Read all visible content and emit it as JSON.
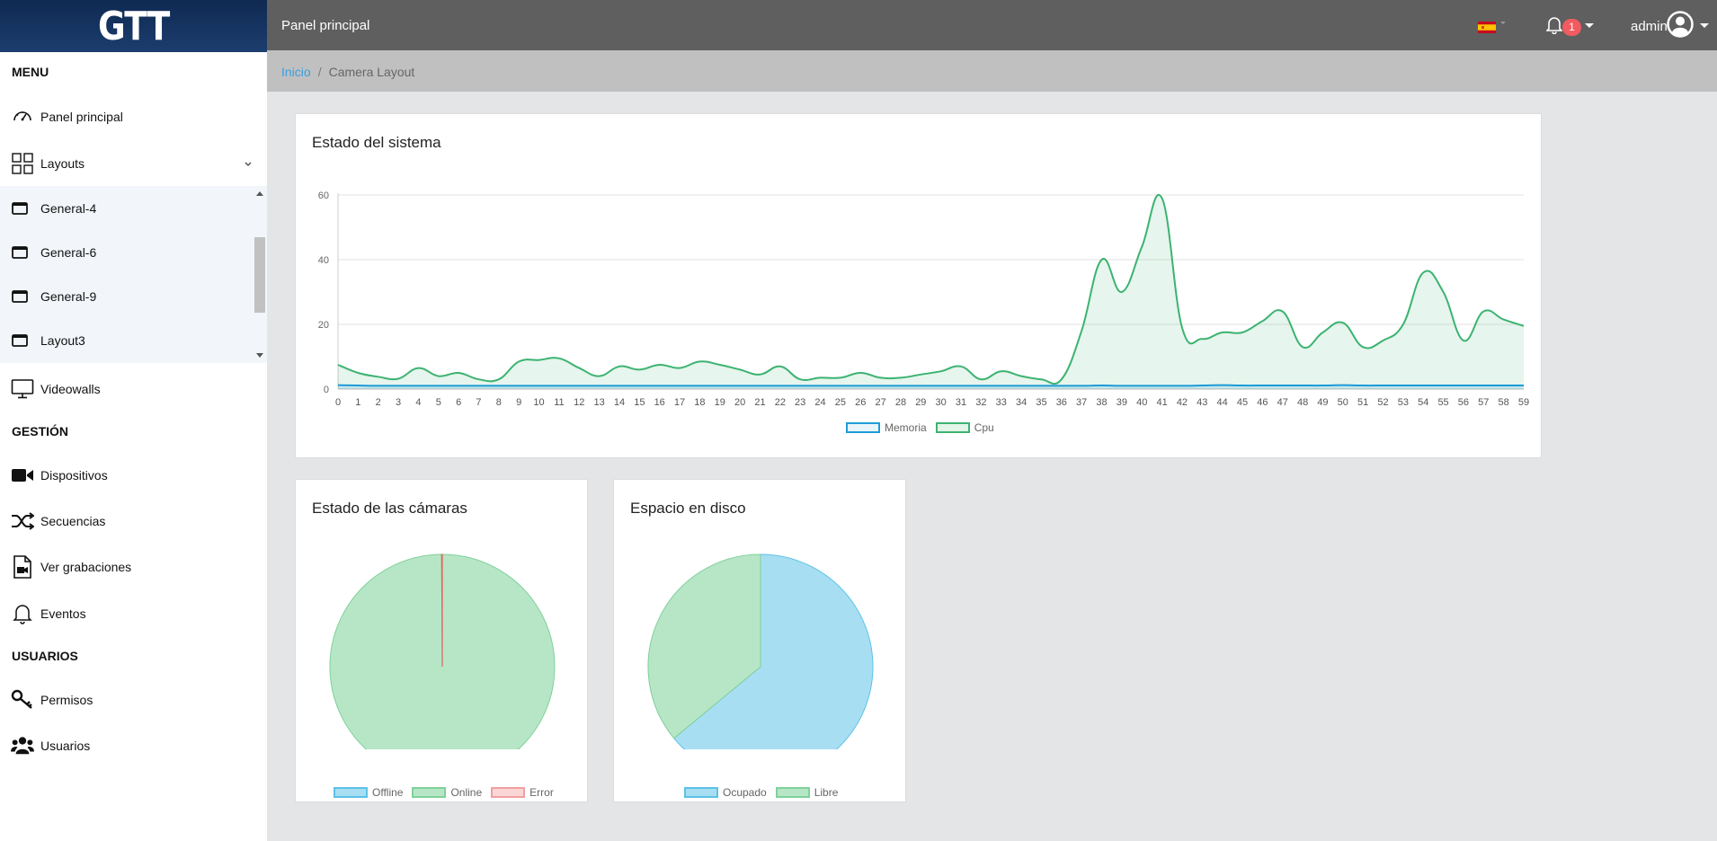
{
  "app": {
    "logo": "GTT"
  },
  "header": {
    "title": "Panel principal",
    "notifications": "1",
    "user": "admin"
  },
  "breadcrumb": {
    "home": "Inicio",
    "separator": "/",
    "current": "Camera Layout"
  },
  "sidebar": {
    "sections": {
      "menu": "MENU",
      "gestion": "GESTIÓN",
      "usuarios": "USUARIOS"
    },
    "items": {
      "panel": "Panel principal",
      "layouts": "Layouts",
      "videowalls": "Videowalls",
      "dispositivos": "Dispositivos",
      "secuencias": "Secuencias",
      "grabaciones": "Ver grabaciones",
      "eventos": "Eventos",
      "permisos": "Permisos",
      "usuarios": "Usuarios"
    },
    "layouts_sub": [
      "General-4",
      "General-6",
      "General-9",
      "Layout3"
    ]
  },
  "colors": {
    "cpu": "#3cb371",
    "memory": "#1e9bd7",
    "online": "#7fd19a",
    "error": "#e06666",
    "ocupado": "#5cc2e6"
  },
  "system_chart": {
    "title": "Estado del sistema",
    "chart_data": {
      "type": "line",
      "x": [
        0,
        1,
        2,
        3,
        4,
        5,
        6,
        7,
        8,
        9,
        10,
        11,
        12,
        13,
        14,
        15,
        16,
        17,
        18,
        19,
        20,
        21,
        22,
        23,
        24,
        25,
        26,
        27,
        28,
        29,
        30,
        31,
        32,
        33,
        34,
        35,
        36,
        37,
        38,
        39,
        40,
        41,
        42,
        43,
        44,
        45,
        46,
        47,
        48,
        49,
        50,
        51,
        52,
        53,
        54,
        55,
        56,
        57,
        58,
        59
      ],
      "yticks": [
        0,
        20,
        40,
        60
      ],
      "ylim": [
        0,
        60
      ],
      "series": [
        {
          "name": "Memoria",
          "values": [
            1.2,
            1.1,
            1,
            1,
            1,
            1,
            1,
            1,
            1,
            1,
            1,
            1,
            1,
            1,
            1,
            1,
            1,
            1,
            1,
            1,
            1,
            1,
            1,
            1,
            1,
            1,
            1,
            1,
            1,
            1,
            1,
            1,
            1,
            1,
            1,
            1,
            1,
            1,
            1.1,
            1,
            1,
            1,
            1,
            1.1,
            1.2,
            1.1,
            1.1,
            1.1,
            1.1,
            1.1,
            1.2,
            1.1,
            1.1,
            1.1,
            1.1,
            1.1,
            1.1,
            1.1,
            1.1,
            1.1
          ]
        },
        {
          "name": "Cpu",
          "values": [
            7.5,
            5,
            3.8,
            3.2,
            6.5,
            4,
            5,
            3,
            3,
            8.5,
            9,
            9.5,
            6.5,
            4,
            7,
            6,
            7.5,
            6.5,
            8.5,
            7.5,
            6,
            4.5,
            7,
            3,
            3.5,
            3.5,
            5,
            3.5,
            3.5,
            4.5,
            5.5,
            7,
            3,
            5.5,
            4,
            3,
            3,
            18,
            40,
            30,
            44,
            59,
            19,
            15.5,
            17.5,
            17.5,
            21,
            24,
            13,
            17.5,
            20.5,
            13,
            15,
            20,
            36,
            30,
            15,
            24,
            21.5,
            19.5
          ]
        }
      ]
    }
  },
  "cameras_chart": {
    "title": "Estado de las cámaras",
    "chart_data": {
      "type": "pie",
      "labels": [
        "Offline",
        "Online",
        "Error"
      ],
      "values": [
        0,
        99.9,
        0.1
      ]
    }
  },
  "disk_chart": {
    "title": "Espacio en disco",
    "chart_data": {
      "type": "pie",
      "labels": [
        "Ocupado",
        "Libre"
      ],
      "values": [
        64,
        36
      ]
    }
  }
}
